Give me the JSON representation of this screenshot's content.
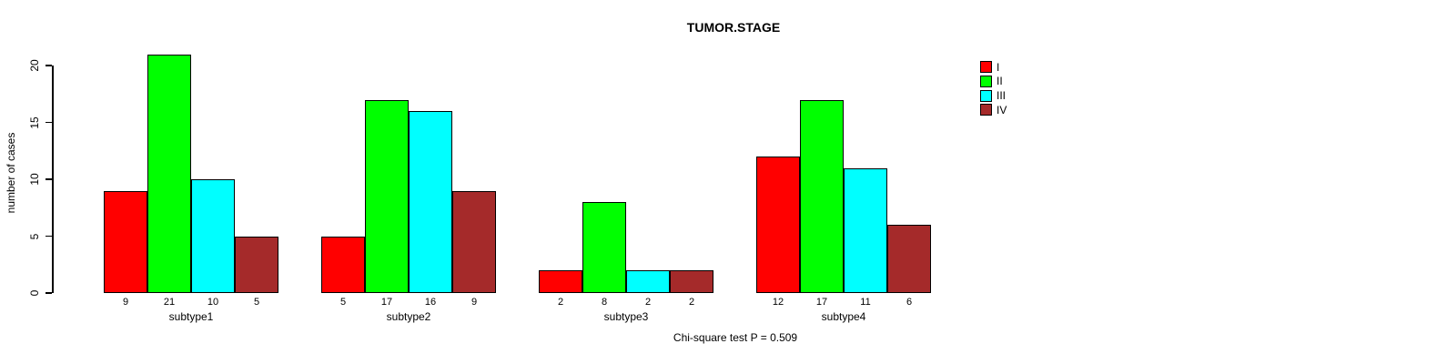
{
  "title": "TUMOR.STAGE",
  "ylabel": "number of cases",
  "footnote": "Chi-square test P = 0.509",
  "legend": {
    "entries": [
      {
        "label": "I",
        "color": "#FF0000"
      },
      {
        "label": "II",
        "color": "#00FF00"
      },
      {
        "label": "III",
        "color": "#00FFFF"
      },
      {
        "label": "IV",
        "color": "#A52A2A"
      }
    ],
    "position": "right"
  },
  "chart_data": {
    "type": "bar",
    "grouped": true,
    "categories": [
      "subtype1",
      "subtype2",
      "subtype3",
      "subtype4"
    ],
    "series": [
      {
        "name": "I",
        "color": "#FF0000",
        "values": [
          9,
          5,
          2,
          12
        ]
      },
      {
        "name": "II",
        "color": "#00FF00",
        "values": [
          21,
          17,
          8,
          17
        ]
      },
      {
        "name": "III",
        "color": "#00FFFF",
        "values": [
          10,
          16,
          2,
          11
        ]
      },
      {
        "name": "IV",
        "color": "#A52A2A",
        "values": [
          5,
          9,
          2,
          6
        ]
      }
    ],
    "title": "TUMOR.STAGE",
    "xlabel": "",
    "ylabel": "number of cases",
    "ylim": [
      0,
      20
    ],
    "yticks": [
      0,
      5,
      10,
      15,
      20
    ],
    "bar_value_labels_shown": true,
    "grid": false,
    "legend_position": "right",
    "annotation": "Chi-square test P = 0.509"
  }
}
